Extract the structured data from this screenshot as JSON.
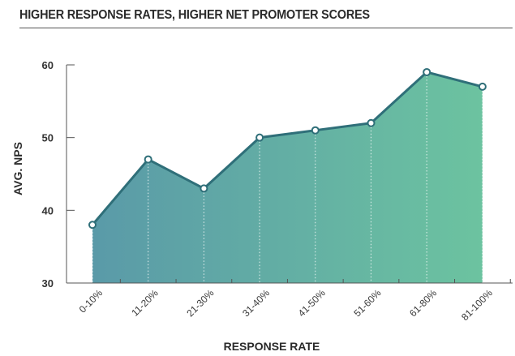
{
  "chart_data": {
    "type": "area",
    "title": "HIGHER RESPONSE RATES, HIGHER NET PROMOTER SCORES",
    "xlabel": "RESPONSE RATE",
    "ylabel": "AVG. NPS",
    "categories": [
      "0-10%",
      "11-20%",
      "21-30%",
      "31-40%",
      "41-50%",
      "51-60%",
      "61-80%",
      "81-100%"
    ],
    "values": [
      38,
      47,
      43,
      50,
      51,
      52,
      59,
      57
    ],
    "ylim": [
      30,
      60
    ],
    "yticks": [
      30,
      40,
      50,
      60
    ],
    "grid": false,
    "markers": true,
    "colors": {
      "line": "#2f6f79",
      "fill_start": "#5a9aa8",
      "fill_end": "#6cc3a0",
      "marker_fill": "#ffffff",
      "axis": "#555555"
    }
  }
}
